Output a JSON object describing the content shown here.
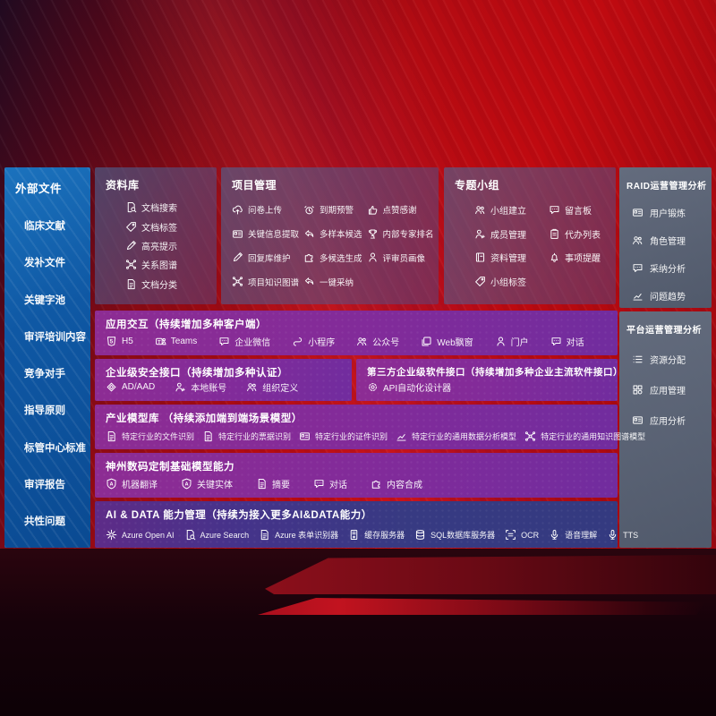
{
  "colors": {
    "background_red": "#b30b12",
    "sidebar_blue": "#0f58a4",
    "panel_gray": "#5e6c7e",
    "row_purple": "#812b9a",
    "row_indigo": "#373a82"
  },
  "sidebar": {
    "title": "外部文件",
    "items": [
      {
        "label": "临床文献"
      },
      {
        "label": "发补文件"
      },
      {
        "label": "关键字池"
      },
      {
        "label": "审评培训内容"
      },
      {
        "label": "竞争对手"
      },
      {
        "label": "指导原则"
      },
      {
        "label": "标管中心标准"
      },
      {
        "label": "审评报告"
      },
      {
        "label": "共性问题"
      }
    ]
  },
  "panels": {
    "datalib": {
      "title": "资料库",
      "items": [
        {
          "icon": "doc-search",
          "label": "文档搜索"
        },
        {
          "icon": "doc-tag",
          "label": "文档标签"
        },
        {
          "icon": "highlight",
          "label": "高亮提示"
        },
        {
          "icon": "relation-graph",
          "label": "关系图谱"
        },
        {
          "icon": "doc-category",
          "label": "文档分类"
        }
      ]
    },
    "project": {
      "title": "项目管理",
      "items": [
        {
          "icon": "cloud-upload",
          "label": "问卷上传"
        },
        {
          "icon": "key-info-extract",
          "label": "关键信息提取"
        },
        {
          "icon": "reply-lib",
          "label": "回复库维护"
        },
        {
          "icon": "project-knowledge-graph",
          "label": "项目知识图谱"
        },
        {
          "icon": "due-alarm",
          "label": "到期预警"
        },
        {
          "icon": "multi-sample",
          "label": "多样本候选"
        },
        {
          "icon": "multi-candidate",
          "label": "多候选生成"
        },
        {
          "icon": "one-click-adopt",
          "label": "一键采纳"
        },
        {
          "icon": "thumbs-up",
          "label": "点赞感谢"
        },
        {
          "icon": "expert-ranking",
          "label": "内部专家排名"
        },
        {
          "icon": "reviewer-portrait",
          "label": "评审员画像"
        }
      ]
    },
    "group": {
      "title": "专题小组",
      "items": [
        {
          "icon": "group-create",
          "label": "小组建立"
        },
        {
          "icon": "member-manage",
          "label": "成员管理"
        },
        {
          "icon": "material-manage",
          "label": "资料管理"
        },
        {
          "icon": "group-tag",
          "label": "小组标签"
        },
        {
          "icon": "message-board",
          "label": "留言板"
        },
        {
          "icon": "todo-list",
          "label": "代办列表"
        },
        {
          "icon": "reminder",
          "label": "事项提醒"
        }
      ]
    },
    "raid": {
      "title": "RAID运营管理分析",
      "items": [
        {
          "icon": "user-card",
          "label": "用户锻炼"
        },
        {
          "icon": "role-manage",
          "label": "角色管理"
        },
        {
          "icon": "adoption-analysis",
          "label": "采纳分析"
        },
        {
          "icon": "issue-trend",
          "label": "问题趋势"
        }
      ]
    },
    "platform": {
      "title": "平台运营管理分析",
      "items": [
        {
          "icon": "resource-alloc",
          "label": "资源分配"
        },
        {
          "icon": "app-manage",
          "label": "应用管理"
        },
        {
          "icon": "app-analysis",
          "label": "应用分析"
        }
      ]
    }
  },
  "rows": {
    "interaction": {
      "title": "应用交互（持续增加多种客户端）",
      "items": [
        {
          "icon": "h5",
          "label": "H5"
        },
        {
          "icon": "teams",
          "label": "Teams"
        },
        {
          "icon": "wechat-work",
          "label": "企业微信"
        },
        {
          "icon": "mini-program",
          "label": "小程序"
        },
        {
          "icon": "official-account",
          "label": "公众号"
        },
        {
          "icon": "web-popup",
          "label": "Web飘窗"
        },
        {
          "icon": "portal",
          "label": "门户"
        },
        {
          "icon": "dialog",
          "label": "对话"
        }
      ]
    },
    "security": {
      "title": "企业级安全接口（持续增加多种认证）",
      "items": [
        {
          "icon": "ad-aad",
          "label": "AD/AAD"
        },
        {
          "icon": "local-account",
          "label": "本地账号"
        },
        {
          "icon": "org-define",
          "label": "组织定义"
        }
      ]
    },
    "thirdparty": {
      "title": "第三方企业级软件接口（持续增加多种企业主流软件接口）",
      "items": [
        {
          "icon": "api-designer",
          "label": "API自动化设计器"
        }
      ]
    },
    "models": {
      "title": "产业模型库 （持续添加端到端场景模型）",
      "items": [
        {
          "icon": "file-recog",
          "label": "特定行业的文件识别"
        },
        {
          "icon": "invoice-recog",
          "label": "特定行业的票据识别"
        },
        {
          "icon": "cert-recog",
          "label": "特定行业的证件识别"
        },
        {
          "icon": "data-model",
          "label": "特定行业的通用数据分析模型"
        },
        {
          "icon": "knowledge-model",
          "label": "特定行业的通用知识图谱模型"
        }
      ]
    },
    "base": {
      "title": "神州数码定制基础模型能力",
      "items": [
        {
          "icon": "machine-translate",
          "label": "机器翻译"
        },
        {
          "icon": "key-entity",
          "label": "关键实体"
        },
        {
          "icon": "summary",
          "label": "摘要"
        },
        {
          "icon": "dialog",
          "label": "对话"
        },
        {
          "icon": "content-compose",
          "label": "内容合成"
        }
      ]
    },
    "ai": {
      "title": "AI & DATA 能力管理（持续为接入更多AI&DATA能力）",
      "items": [
        {
          "icon": "azure-openai",
          "label": "Azure Open AI"
        },
        {
          "icon": "azure-search",
          "label": "Azure Search"
        },
        {
          "icon": "azure-form",
          "label": "Azure 表单识别器"
        },
        {
          "icon": "cache-server",
          "label": "缓存服务器"
        },
        {
          "icon": "sql-server",
          "label": "SQL数据库服务器"
        },
        {
          "icon": "ocr",
          "label": "OCR"
        },
        {
          "icon": "speech",
          "label": "语音理解"
        },
        {
          "icon": "tts",
          "label": "TTS"
        }
      ]
    }
  }
}
